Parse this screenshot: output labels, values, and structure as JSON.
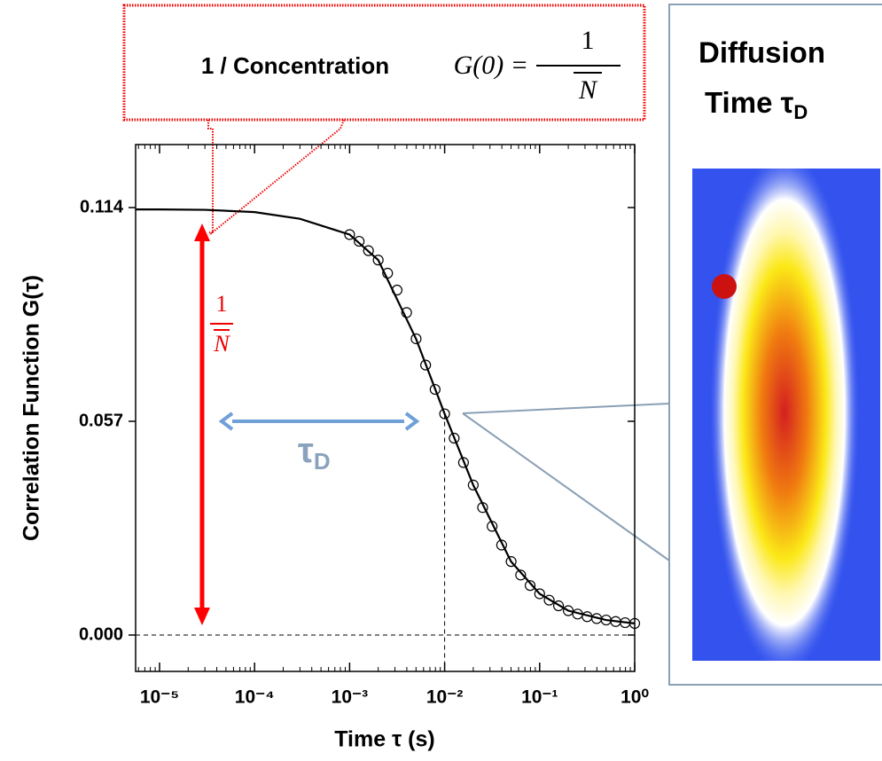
{
  "chart_data": {
    "type": "scatter",
    "x_label": "Time τ (s)",
    "y_label": "Correlation Function G(τ)",
    "x_scale": "log",
    "xlim": [
      5.6e-06,
      1
    ],
    "xticks": [
      {
        "value": 1e-05,
        "label": "10⁻⁵"
      },
      {
        "value": 0.0001,
        "label": "10⁻⁴"
      },
      {
        "value": 0.001,
        "label": "10⁻³"
      },
      {
        "value": 0.01,
        "label": "10⁻²"
      },
      {
        "value": 0.1,
        "label": "10⁻¹"
      },
      {
        "value": 1,
        "label": "10⁰"
      }
    ],
    "ylim": [
      -0.0097,
      0.1308
    ],
    "yticks": [
      {
        "value": 0,
        "label": "0.000"
      },
      0.057,
      0.114
    ],
    "x": [
      0.001,
      0.00126,
      0.00158,
      0.002,
      0.00251,
      0.00316,
      0.00398,
      0.00501,
      0.00631,
      0.00794,
      0.01,
      0.0126,
      0.0158,
      0.02,
      0.0251,
      0.0316,
      0.0398,
      0.0501,
      0.0631,
      0.0794,
      0.1,
      0.126,
      0.158,
      0.2,
      0.251,
      0.316,
      0.398,
      0.501,
      0.631,
      0.794,
      1.0
    ],
    "values": [
      0.1068,
      0.105,
      0.1025,
      0.1,
      0.0965,
      0.092,
      0.086,
      0.079,
      0.072,
      0.0655,
      0.059,
      0.0525,
      0.046,
      0.04,
      0.034,
      0.029,
      0.024,
      0.0196,
      0.016,
      0.0132,
      0.011,
      0.0093,
      0.0078,
      0.0065,
      0.0056,
      0.0049,
      0.0044,
      0.004,
      0.0036,
      0.0033,
      0.0031
    ],
    "color": "#000000",
    "fit": {
      "x": [
        5.6e-06,
        1e-05,
        3e-05,
        0.0001,
        0.0003,
        0.001,
        0.002,
        0.005,
        0.01,
        0.02,
        0.05,
        0.1,
        0.2,
        0.5,
        1
      ],
      "values": [
        0.1135,
        0.1135,
        0.1134,
        0.1128,
        0.111,
        0.1068,
        0.1,
        0.079,
        0.059,
        0.04,
        0.0196,
        0.011,
        0.0065,
        0.004,
        0.0031
      ],
      "color": "#000000"
    },
    "reference_lines": {
      "x": 0.01,
      "y": 0
    },
    "annotations": {
      "concentration": "1 / Concentration",
      "formula": {
        "lhs": "G(0) =",
        "numerator": "1",
        "denominator": "N"
      },
      "inverse_n": {
        "numerator": "1",
        "denominator": "N"
      },
      "tau_d": {
        "symbol": "τ",
        "subscript": "D"
      },
      "panel_title": {
        "line1": "Diffusion",
        "line2": "Time τ",
        "subscript": "D"
      }
    }
  }
}
